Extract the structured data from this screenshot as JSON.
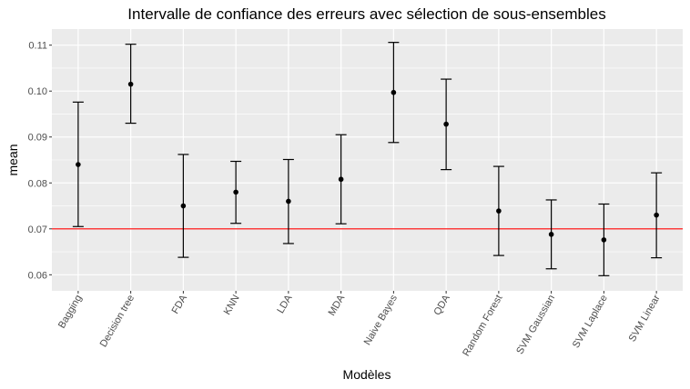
{
  "chart_data": {
    "type": "errorbar",
    "title": "Intervalle de confiance des erreurs avec sélection de sous-ensembles",
    "xlabel": "Modèles",
    "ylabel": "mean",
    "ylim": [
      0.0565,
      0.1135
    ],
    "yticks": [
      0.06,
      0.07,
      0.08,
      0.09,
      0.1,
      0.11
    ],
    "ytick_labels": [
      "0.06",
      "0.07",
      "0.08",
      "0.09",
      "0.10",
      "0.11"
    ],
    "categories": [
      "Bagging",
      "Decision tree",
      "FDA",
      "KNN",
      "LDA",
      "MDA",
      "Naive Bayes",
      "QDA",
      "Random Forest",
      "SVM Gaussian",
      "SVM Laplace",
      "SVM Linear"
    ],
    "mean": [
      0.084,
      0.1015,
      0.075,
      0.078,
      0.076,
      0.0808,
      0.0997,
      0.0928,
      0.0739,
      0.0688,
      0.0676,
      0.073
    ],
    "lower": [
      0.0705,
      0.093,
      0.0638,
      0.0712,
      0.0668,
      0.0711,
      0.0888,
      0.0829,
      0.0642,
      0.0613,
      0.0598,
      0.0637
    ],
    "upper": [
      0.0976,
      0.1102,
      0.0862,
      0.0847,
      0.0851,
      0.0905,
      0.1106,
      0.1026,
      0.0836,
      0.0763,
      0.0754,
      0.0822
    ],
    "reference_line": 0.07,
    "reference_color": "#ff0000",
    "panel_color": "#ebebeb",
    "grid": true
  }
}
